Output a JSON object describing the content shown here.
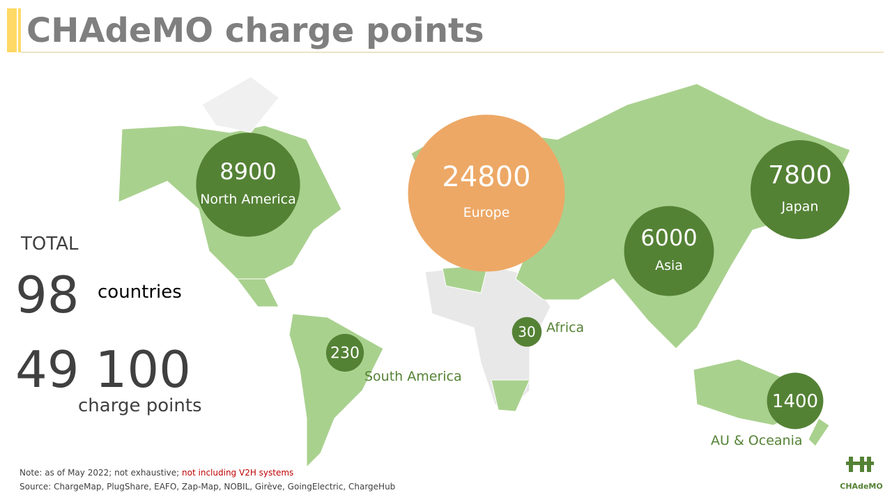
{
  "header": {
    "title": "CHAdeMO charge points"
  },
  "regions": [
    {
      "value": 8900,
      "label": "North America",
      "color": "#548235"
    },
    {
      "value": 24800,
      "label": "Europe",
      "color": "#eda866"
    },
    {
      "value": 7800,
      "label": "Japan",
      "color": "#548235"
    },
    {
      "value": 6000,
      "label": "Asia",
      "color": "#548235"
    },
    {
      "value": 30,
      "label": "Africa",
      "color": "#548235"
    },
    {
      "value": 230,
      "label": "South America",
      "color": "#548235"
    },
    {
      "value": 1400,
      "label": "AU & Oceania",
      "color": "#548235"
    }
  ],
  "totals": {
    "heading": "TOTAL",
    "countries_value": "98",
    "countries_label": "countries",
    "points_value": "49 100",
    "points_label": "charge points"
  },
  "footer": {
    "note": "Note: as of May 2022; not exhaustive;",
    "note_highlight": "not including  V2H systems",
    "source": "Source: ChargeMap, PlugShare, EAFO, Zap-Map, NOBIL, Girève, GoingElectric, ChargeHub"
  },
  "logo": {
    "text": "CHAdeMO"
  }
}
